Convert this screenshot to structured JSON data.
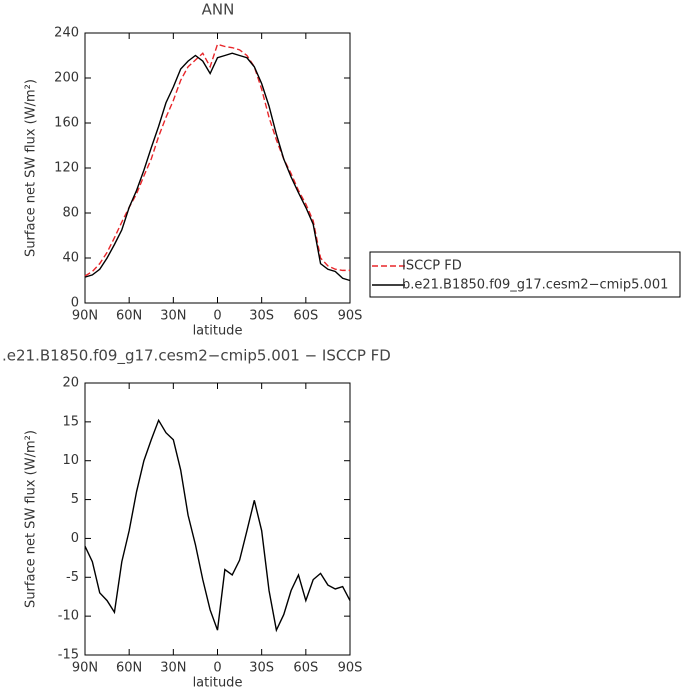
{
  "chart_data": [
    {
      "type": "line",
      "title": "ANN",
      "xlabel": "latitude",
      "ylabel": "Surface net SW flux (W/m²)",
      "x": [
        90,
        85,
        80,
        75,
        70,
        65,
        60,
        55,
        50,
        45,
        40,
        35,
        30,
        25,
        20,
        15,
        10,
        5,
        0,
        -5,
        -10,
        -15,
        -20,
        -25,
        -30,
        -35,
        -40,
        -45,
        -50,
        -55,
        -60,
        -65,
        -70,
        -75,
        -80,
        -85,
        -90
      ],
      "xlim": [
        90,
        -90
      ],
      "xticks": [
        {
          "value": 90,
          "label": "90N"
        },
        {
          "value": 60,
          "label": "60N"
        },
        {
          "value": 30,
          "label": "30N"
        },
        0,
        {
          "value": -30,
          "label": "30S"
        },
        {
          "value": -60,
          "label": "60S"
        },
        {
          "value": -90,
          "label": "90S"
        }
      ],
      "ylim": [
        0,
        240
      ],
      "yticks": [
        0,
        40,
        80,
        120,
        160,
        200,
        240
      ],
      "legend": "right",
      "series": [
        {
          "name": "ISCCP FD",
          "color": "#e8262a",
          "linestyle": "dashed",
          "values": [
            24,
            28,
            35,
            45,
            58,
            72,
            85,
            97,
            113,
            128,
            148,
            165,
            180,
            198,
            210,
            216,
            222,
            210,
            230,
            228,
            227,
            225,
            220,
            210,
            190,
            165,
            145,
            128,
            115,
            100,
            88,
            73,
            40,
            33,
            30,
            29,
            29
          ]
        },
        {
          "name": "b.e21.B1850.f09_g17.cesm2−cmip5.001",
          "color": "#000000",
          "linestyle": "solid",
          "values": [
            23,
            25,
            30,
            40,
            52,
            65,
            85,
            100,
            118,
            138,
            157,
            178,
            192,
            208,
            215,
            220,
            215,
            204,
            218,
            220,
            222,
            220,
            218,
            210,
            195,
            175,
            150,
            128,
            112,
            98,
            85,
            70,
            35,
            30,
            28,
            22,
            20
          ]
        }
      ]
    },
    {
      "type": "line",
      "title": ".e21.B1850.f09_g17.cesm2−cmip5.001 − ISCCP FD",
      "xlabel": "latitude",
      "ylabel": "Surface net SW flux (W/m²)",
      "x": [
        90,
        85,
        80,
        75,
        70,
        65,
        60,
        55,
        50,
        45,
        40,
        35,
        30,
        25,
        20,
        15,
        10,
        5,
        0,
        -5,
        -10,
        -15,
        -20,
        -25,
        -30,
        -35,
        -40,
        -45,
        -50,
        -55,
        -60,
        -65,
        -70,
        -75,
        -80,
        -85,
        -90
      ],
      "xlim": [
        90,
        -90
      ],
      "xticks": [
        {
          "value": 90,
          "label": "90N"
        },
        {
          "value": 60,
          "label": "60N"
        },
        {
          "value": 30,
          "label": "30N"
        },
        0,
        {
          "value": -30,
          "label": "30S"
        },
        {
          "value": -60,
          "label": "60S"
        },
        {
          "value": -90,
          "label": "90S"
        }
      ],
      "ylim": [
        -15,
        20
      ],
      "yticks": [
        -15,
        -10,
        -5,
        0,
        5,
        10,
        15,
        20
      ],
      "series": [
        {
          "color": "#000000",
          "linestyle": "solid",
          "values": [
            -1,
            -3,
            -7,
            -8,
            -9.5,
            -3,
            1,
            6,
            10,
            12.7,
            15.2,
            13.6,
            12.7,
            8.8,
            3,
            -0.8,
            -5.3,
            -9.2,
            -11.8,
            -4,
            -4.7,
            -2.8,
            1,
            4.9,
            1,
            -6.7,
            -11.8,
            -9.8,
            -6.7,
            -4.7,
            -8,
            -5.3,
            -4.5,
            -6,
            -6.5,
            -6.2,
            -8
          ]
        }
      ]
    }
  ]
}
